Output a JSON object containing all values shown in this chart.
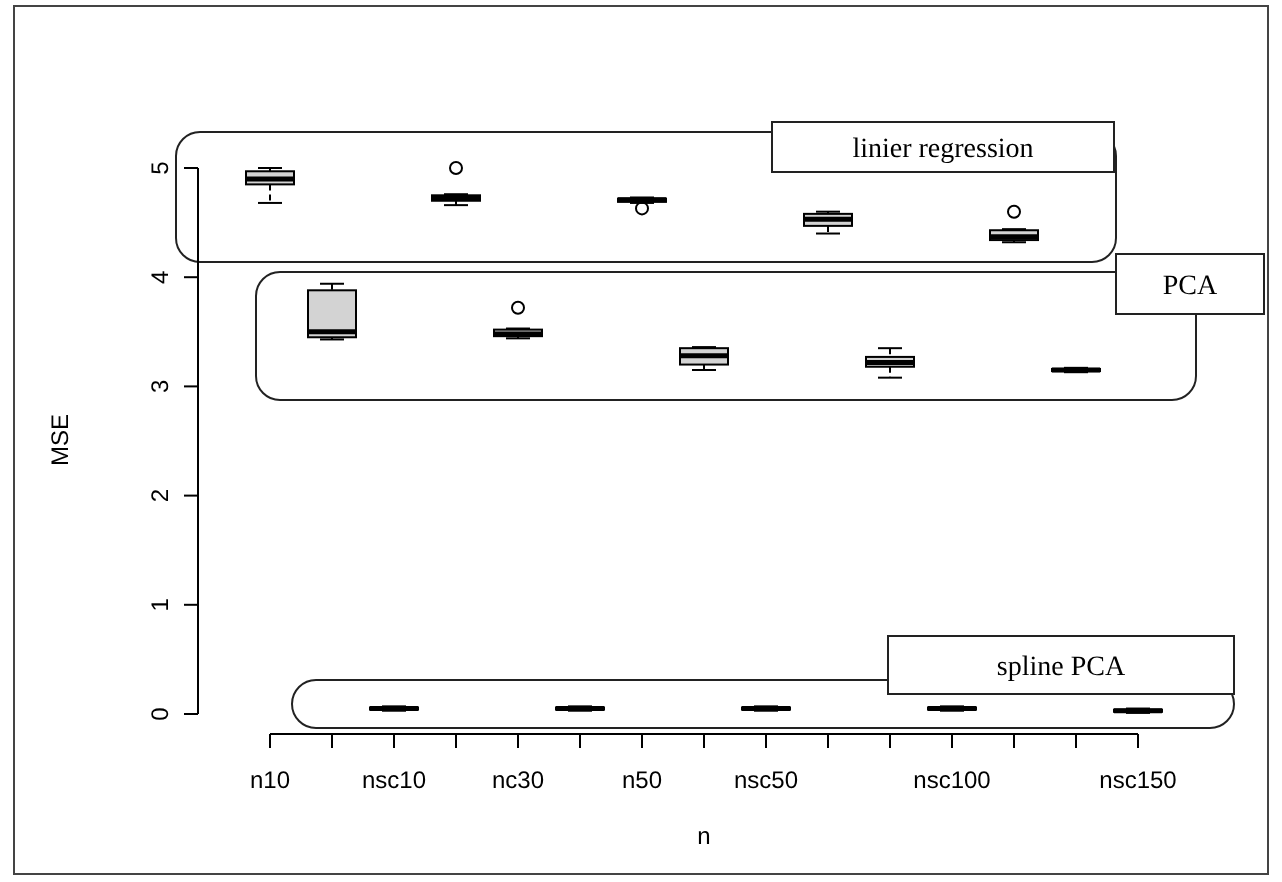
{
  "chart_data": {
    "type": "box",
    "xlabel": "n",
    "ylabel": "MSE",
    "categories": [
      "n10",
      null,
      "nsc10",
      null,
      "nc30",
      null,
      "n50",
      null,
      "nsc50",
      null,
      null,
      "nsc100",
      null,
      null,
      "nsc150"
    ],
    "color": "#d3d3d3",
    "boxes": [
      {
        "low": 4.68,
        "q1": 4.85,
        "median": 4.9,
        "q3": 4.97,
        "high": 5.0
      },
      {
        "low": 3.43,
        "q1": 3.45,
        "median": 3.5,
        "q3": 3.88,
        "high": 3.94
      },
      {
        "low": 0.03,
        "q1": 0.04,
        "median": 0.05,
        "q3": 0.06,
        "high": 0.07
      },
      {
        "low": 4.66,
        "q1": 4.7,
        "median": 4.72,
        "q3": 4.75,
        "high": 4.76,
        "outliers": [
          5.0
        ]
      },
      {
        "low": 3.44,
        "q1": 3.46,
        "median": 3.48,
        "q3": 3.52,
        "high": 3.53,
        "outliers": [
          3.72
        ]
      },
      {
        "low": 0.03,
        "q1": 0.04,
        "median": 0.05,
        "q3": 0.06,
        "high": 0.07
      },
      {
        "low": 4.68,
        "q1": 4.69,
        "median": 4.71,
        "q3": 4.72,
        "high": 4.73,
        "outliers": [
          4.63
        ]
      },
      {
        "low": 3.15,
        "q1": 3.2,
        "median": 3.28,
        "q3": 3.35,
        "high": 3.36
      },
      {
        "low": 0.03,
        "q1": 0.04,
        "median": 0.05,
        "q3": 0.06,
        "high": 0.07
      },
      {
        "low": 4.4,
        "q1": 4.47,
        "median": 4.53,
        "q3": 4.58,
        "high": 4.6
      },
      {
        "low": 3.08,
        "q1": 3.18,
        "median": 3.22,
        "q3": 3.27,
        "high": 3.35
      },
      {
        "low": 0.03,
        "q1": 0.04,
        "median": 0.05,
        "q3": 0.06,
        "high": 0.07
      },
      {
        "low": 4.32,
        "q1": 4.34,
        "median": 4.37,
        "q3": 4.43,
        "high": 4.44,
        "outliers": [
          4.6
        ]
      },
      {
        "low": 3.13,
        "q1": 3.14,
        "median": 3.15,
        "q3": 3.16,
        "high": 3.17
      },
      {
        "low": 0.01,
        "q1": 0.02,
        "median": 0.03,
        "q3": 0.04,
        "high": 0.05
      }
    ],
    "ylim": [
      0,
      5
    ],
    "yticks": [
      0,
      1,
      2,
      3,
      4,
      5
    ],
    "annotations": [
      "linier regression",
      "PCA",
      "spline PCA"
    ]
  }
}
